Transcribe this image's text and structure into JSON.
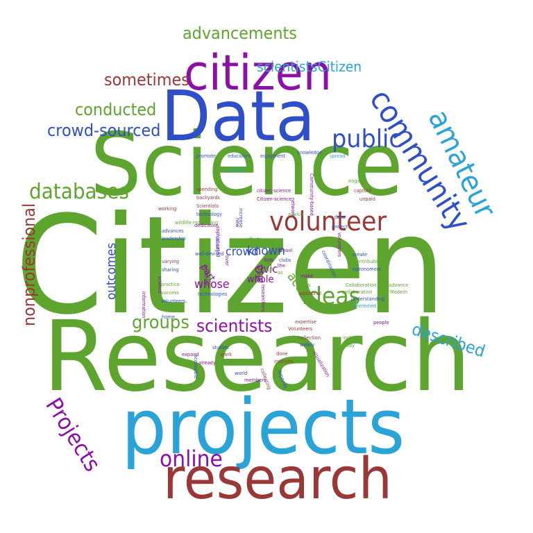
{
  "colors": {
    "green": "#5ea52f",
    "blue": "#2f4fc9",
    "purple": "#8c10a8",
    "brown": "#9a3838",
    "cyan": "#2aa3d6"
  },
  "words": [
    {
      "text": "Citizen",
      "color": "green"
    },
    {
      "text": "Research",
      "color": "green"
    },
    {
      "text": "Science",
      "color": "green"
    },
    {
      "text": "Data",
      "color": "blue"
    },
    {
      "text": "projects",
      "color": "cyan"
    },
    {
      "text": "citizen",
      "color": "purple"
    },
    {
      "text": "research",
      "color": "brown"
    },
    {
      "text": "community",
      "color": "blue"
    },
    {
      "text": "amateur",
      "color": "cyan"
    },
    {
      "text": "volunteer",
      "color": "brown"
    },
    {
      "text": "public",
      "color": "blue"
    },
    {
      "text": "databases",
      "color": "green"
    },
    {
      "text": "online",
      "color": "purple"
    },
    {
      "text": "Projects",
      "color": "purple"
    },
    {
      "text": "nonprofessional",
      "color": "brown"
    },
    {
      "text": "advancements",
      "color": "green"
    },
    {
      "text": "scientistsCitizen",
      "color": "cyan"
    },
    {
      "text": "sometimes",
      "color": "brown"
    },
    {
      "text": "conducted",
      "color": "green"
    },
    {
      "text": "crowd-sourced",
      "color": "blue"
    },
    {
      "text": "groups",
      "color": "green"
    },
    {
      "text": "scientists",
      "color": "purple"
    },
    {
      "text": "ideas",
      "color": "green"
    },
    {
      "text": "described",
      "color": "cyan"
    },
    {
      "text": "outcomes",
      "color": "blue"
    },
    {
      "text": "whose",
      "color": "purple"
    },
    {
      "text": "action",
      "color": "green"
    },
    {
      "text": "known",
      "color": "blue"
    },
    {
      "text": "civic",
      "color": "purple"
    },
    {
      "text": "crowd",
      "color": "blue"
    },
    {
      "text": "whole",
      "color": "purple"
    },
    {
      "text": "part",
      "color": "purple"
    },
    {
      "text": "also",
      "color": "purple"
    },
    {
      "text": "promote",
      "color": "blue"
    },
    {
      "text": "educators",
      "color": "blue"
    },
    {
      "text": "equipment",
      "color": "blue"
    },
    {
      "text": "knowledge",
      "color": "blue"
    },
    {
      "text": "spread",
      "color": "cyan"
    },
    {
      "text": "students",
      "color": "cyan"
    },
    {
      "text": "spending",
      "color": "brown"
    },
    {
      "text": "backyards",
      "color": "brown"
    },
    {
      "text": "Scientists",
      "color": "brown"
    },
    {
      "text": "technology",
      "color": "blue"
    },
    {
      "text": "Community-based",
      "color": "purple"
    },
    {
      "text": "engage",
      "color": "green"
    },
    {
      "text": "capture",
      "color": "brown"
    },
    {
      "text": "citizen-science",
      "color": "purple"
    },
    {
      "text": "Citizen-science",
      "color": "purple"
    },
    {
      "text": "increase",
      "color": "blue"
    },
    {
      "text": "network",
      "color": "purple"
    },
    {
      "text": "data",
      "color": "blue"
    },
    {
      "text": "unpaid",
      "color": "brown"
    },
    {
      "text": "project",
      "color": "blue"
    },
    {
      "text": "working",
      "color": "brown"
    },
    {
      "text": "wildlife-monitoring",
      "color": "green"
    },
    {
      "text": "dedication",
      "color": "purple"
    },
    {
      "text": "advances",
      "color": "blue"
    },
    {
      "text": "leadership",
      "color": "blue"
    },
    {
      "text": "advice",
      "color": "green"
    },
    {
      "text": "new",
      "color": "purple"
    },
    {
      "text": "sophisticated",
      "color": "purple"
    },
    {
      "text": "efforts",
      "color": "green"
    },
    {
      "text": "usually",
      "color": "blue"
    },
    {
      "text": "well-devised",
      "color": "blue"
    },
    {
      "text": "school",
      "color": "purple"
    },
    {
      "text": "kids",
      "color": "purple"
    },
    {
      "text": "high",
      "color": "green"
    },
    {
      "text": "the",
      "color": "purple"
    },
    {
      "text": "as",
      "color": "green"
    },
    {
      "text": "clubs",
      "color": "blue"
    },
    {
      "text": "create",
      "color": "blue"
    },
    {
      "text": "contribute",
      "color": "green"
    },
    {
      "text": "astronomers",
      "color": "blue"
    },
    {
      "text": "volunteers",
      "color": "purple"
    },
    {
      "text": "coordination",
      "color": "blue"
    },
    {
      "text": "varying",
      "color": "brown"
    },
    {
      "text": "sharing",
      "color": "blue"
    },
    {
      "text": "science",
      "color": "purple"
    },
    {
      "text": "practice",
      "color": "green"
    },
    {
      "text": "success",
      "color": "green"
    },
    {
      "text": "generate",
      "color": "purple"
    },
    {
      "text": "over",
      "color": "purple"
    },
    {
      "text": "make",
      "color": "purple"
    },
    {
      "text": "levels",
      "color": "green"
    },
    {
      "text": "researchers",
      "color": "purple"
    },
    {
      "text": "technologies",
      "color": "blue"
    },
    {
      "text": "volunteers.",
      "color": "blue"
    },
    {
      "text": "information",
      "color": "purple"
    },
    {
      "text": "additional",
      "color": "brown"
    },
    {
      "text": "Collaboration",
      "color": "green"
    },
    {
      "text": "advance",
      "color": "green"
    },
    {
      "text": "collaboration",
      "color": "green"
    },
    {
      "text": "Modern",
      "color": "green"
    },
    {
      "text": "understanding",
      "color": "blue"
    },
    {
      "text": "Interested",
      "color": "cyan"
    },
    {
      "text": "home",
      "color": "blue"
    },
    {
      "text": "expertise",
      "color": "brown"
    },
    {
      "text": "people",
      "color": "purple"
    },
    {
      "text": "Volunteers",
      "color": "brown"
    },
    {
      "text": "collection",
      "color": "brown"
    },
    {
      "text": "include",
      "color": "green"
    },
    {
      "text": "today",
      "color": "green"
    },
    {
      "text": "studies",
      "color": "blue"
    },
    {
      "text": "work",
      "color": "brown"
    },
    {
      "text": "expand",
      "color": "purple"
    },
    {
      "text": "accessible",
      "color": "blue"
    },
    {
      "text": "done",
      "color": "brown"
    },
    {
      "text": "widely",
      "color": "blue"
    },
    {
      "text": "already",
      "color": "purple"
    },
    {
      "text": "involves",
      "color": "brown"
    },
    {
      "text": "visualization",
      "color": "purple"
    },
    {
      "text": "world",
      "color": "blue"
    },
    {
      "text": "members",
      "color": "purple"
    },
    {
      "text": "collecting",
      "color": "brown"
    },
    {
      "text": "depends",
      "color": "blue"
    }
  ]
}
